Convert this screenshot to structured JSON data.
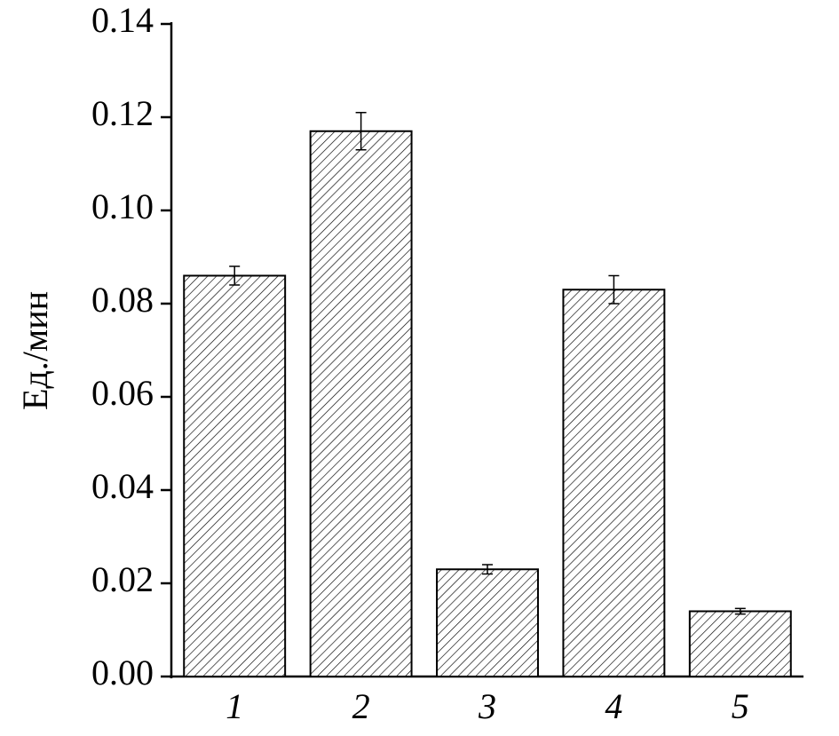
{
  "chart_data": {
    "type": "bar",
    "y_label": "Ед./мин",
    "categories": [
      "1",
      "2",
      "3",
      "4",
      "5"
    ],
    "values": [
      0.086,
      0.117,
      0.023,
      0.083,
      0.014
    ],
    "errors": [
      0.002,
      0.004,
      0.001,
      0.003,
      0.0006
    ],
    "color": "#000000",
    "pattern": "hatch",
    "ylim": [
      0,
      0.14
    ],
    "yticks": [
      {
        "value": 0,
        "label": "0.00"
      },
      {
        "value": 0.02,
        "label": "0.02"
      },
      {
        "value": 0.04,
        "label": "0.04"
      },
      {
        "value": 0.06,
        "label": "0.06"
      },
      {
        "value": 0.08,
        "label": "0.08"
      },
      {
        "value": 0.1,
        "label": "0.10"
      },
      {
        "value": 0.12,
        "label": "0.12"
      },
      {
        "value": 0.14,
        "label": "0.14"
      }
    ],
    "grid": false
  }
}
